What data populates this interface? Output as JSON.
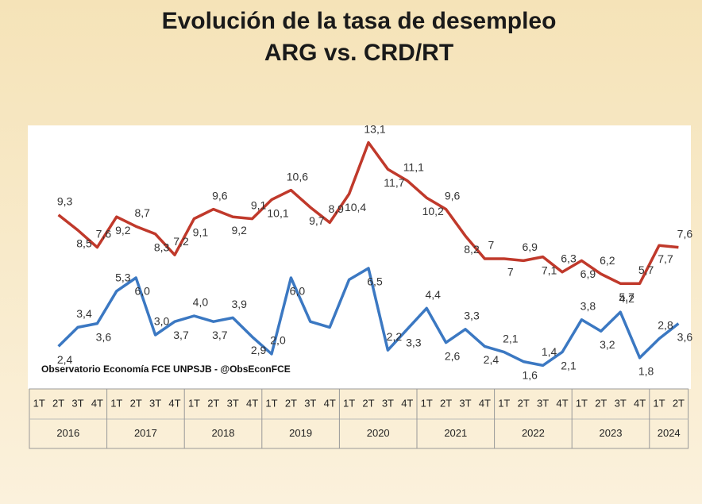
{
  "chart_data": {
    "type": "line",
    "title": [
      "Evolución de la tasa de desempleo",
      "ARG vs. CRD/RT"
    ],
    "source": "Observatorio Economía FCE UNPSJB - @ObsEconFCE",
    "categories": [
      "1T",
      "2T",
      "3T",
      "4T",
      "1T",
      "2T",
      "3T",
      "4T",
      "1T",
      "2T",
      "3T",
      "4T",
      "1T",
      "2T",
      "3T",
      "4T",
      "1T",
      "2T",
      "3T",
      "4T",
      "1T",
      "2T",
      "3T",
      "4T",
      "1T",
      "2T",
      "3T",
      "4T",
      "1T",
      "2T",
      "3T",
      "4T",
      "1T",
      "2T"
    ],
    "years": [
      "2016",
      "2017",
      "2018",
      "2019",
      "2020",
      "2021",
      "2022",
      "2023",
      "2024"
    ],
    "ylim": [
      0,
      14
    ],
    "series": [
      {
        "color": "#c0392b",
        "values": [
          null,
          9.3,
          8.5,
          7.6,
          9.2,
          8.7,
          8.3,
          7.2,
          9.1,
          9.6,
          9.2,
          9.1,
          10.1,
          10.6,
          9.7,
          8.9,
          10.4,
          13.1,
          11.7,
          11.1,
          10.2,
          9.6,
          8.2,
          7,
          7,
          6.9,
          7.1,
          6.3,
          6.9,
          6.2,
          5.7,
          5.7,
          7.7,
          7.6
        ],
        "value_labels": [
          null,
          "9,3",
          "8,5",
          "7,6",
          "9,2",
          "8,7",
          "8,3",
          "7,2",
          "9,1",
          "9,6",
          "9,2",
          "9,1",
          "10,1",
          "10,6",
          "9,7",
          "8,9",
          "10,4",
          "13,1",
          "11,7",
          "11,1",
          "10,2",
          "9,6",
          "8,2",
          "7",
          "7",
          "6,9",
          "7,1",
          "6,3",
          "6,9",
          "6,2",
          "5,7",
          "5,7",
          "7,7",
          "7,6"
        ]
      },
      {
        "color": "#3b78c2",
        "values": [
          null,
          2.4,
          3.4,
          3.6,
          5.3,
          6.0,
          3.0,
          3.7,
          4.0,
          3.7,
          3.9,
          2.9,
          2.0,
          6.0,
          3.7,
          3.4,
          5.9,
          6.5,
          2.2,
          3.3,
          4.4,
          2.6,
          3.3,
          2.4,
          2.1,
          1.6,
          1.4,
          2.1,
          3.8,
          3.2,
          4.2,
          1.8,
          2.8,
          3.6
        ],
        "value_labels": [
          null,
          "2,4",
          "3,4",
          "3,6",
          "5,3",
          "6,0",
          "3,0",
          "3,7",
          "4,0",
          "3,7",
          "3,9",
          "2,9",
          "2,0",
          "6,0",
          null,
          null,
          null,
          "6,5",
          "2,2",
          "3,3",
          "4,4",
          "2,6",
          "3,3",
          "2,4",
          "2,1",
          "1,6",
          "1,4",
          "2,1",
          "3,8",
          "3,2",
          "4,2",
          "1,8",
          "2,8",
          "3,6"
        ]
      }
    ]
  }
}
